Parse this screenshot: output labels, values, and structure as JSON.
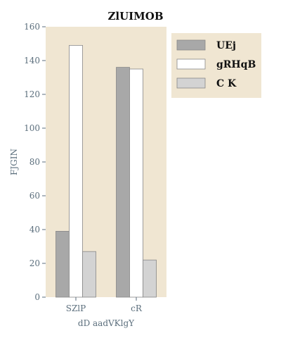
{
  "chart_data": {
    "type": "bar",
    "title": "ZlUIMOB",
    "xlabel": "dD  aadVKlgY",
    "ylabel": "FJGIN",
    "categories": [
      "SZlP",
      "cR"
    ],
    "series": [
      {
        "name": "UEj",
        "values": [
          39,
          136
        ],
        "color": "#a8a8a8"
      },
      {
        "name": "gRHqB",
        "values": [
          149,
          135
        ],
        "color": "#ffffff"
      },
      {
        "name": "C K",
        "values": [
          27,
          22
        ],
        "color": "#d3d3d3"
      }
    ],
    "ylim": [
      0,
      160
    ],
    "yticks": [
      0,
      20,
      40,
      60,
      80,
      100,
      120,
      140,
      160
    ],
    "grid": false,
    "legend_position": "top-right, outside plot",
    "colors": {
      "plot_background": "#f0e6d2",
      "legend_background": "#f0e6d2",
      "tick_color": "#5b6e7c",
      "bar_edge": "#888888"
    }
  }
}
